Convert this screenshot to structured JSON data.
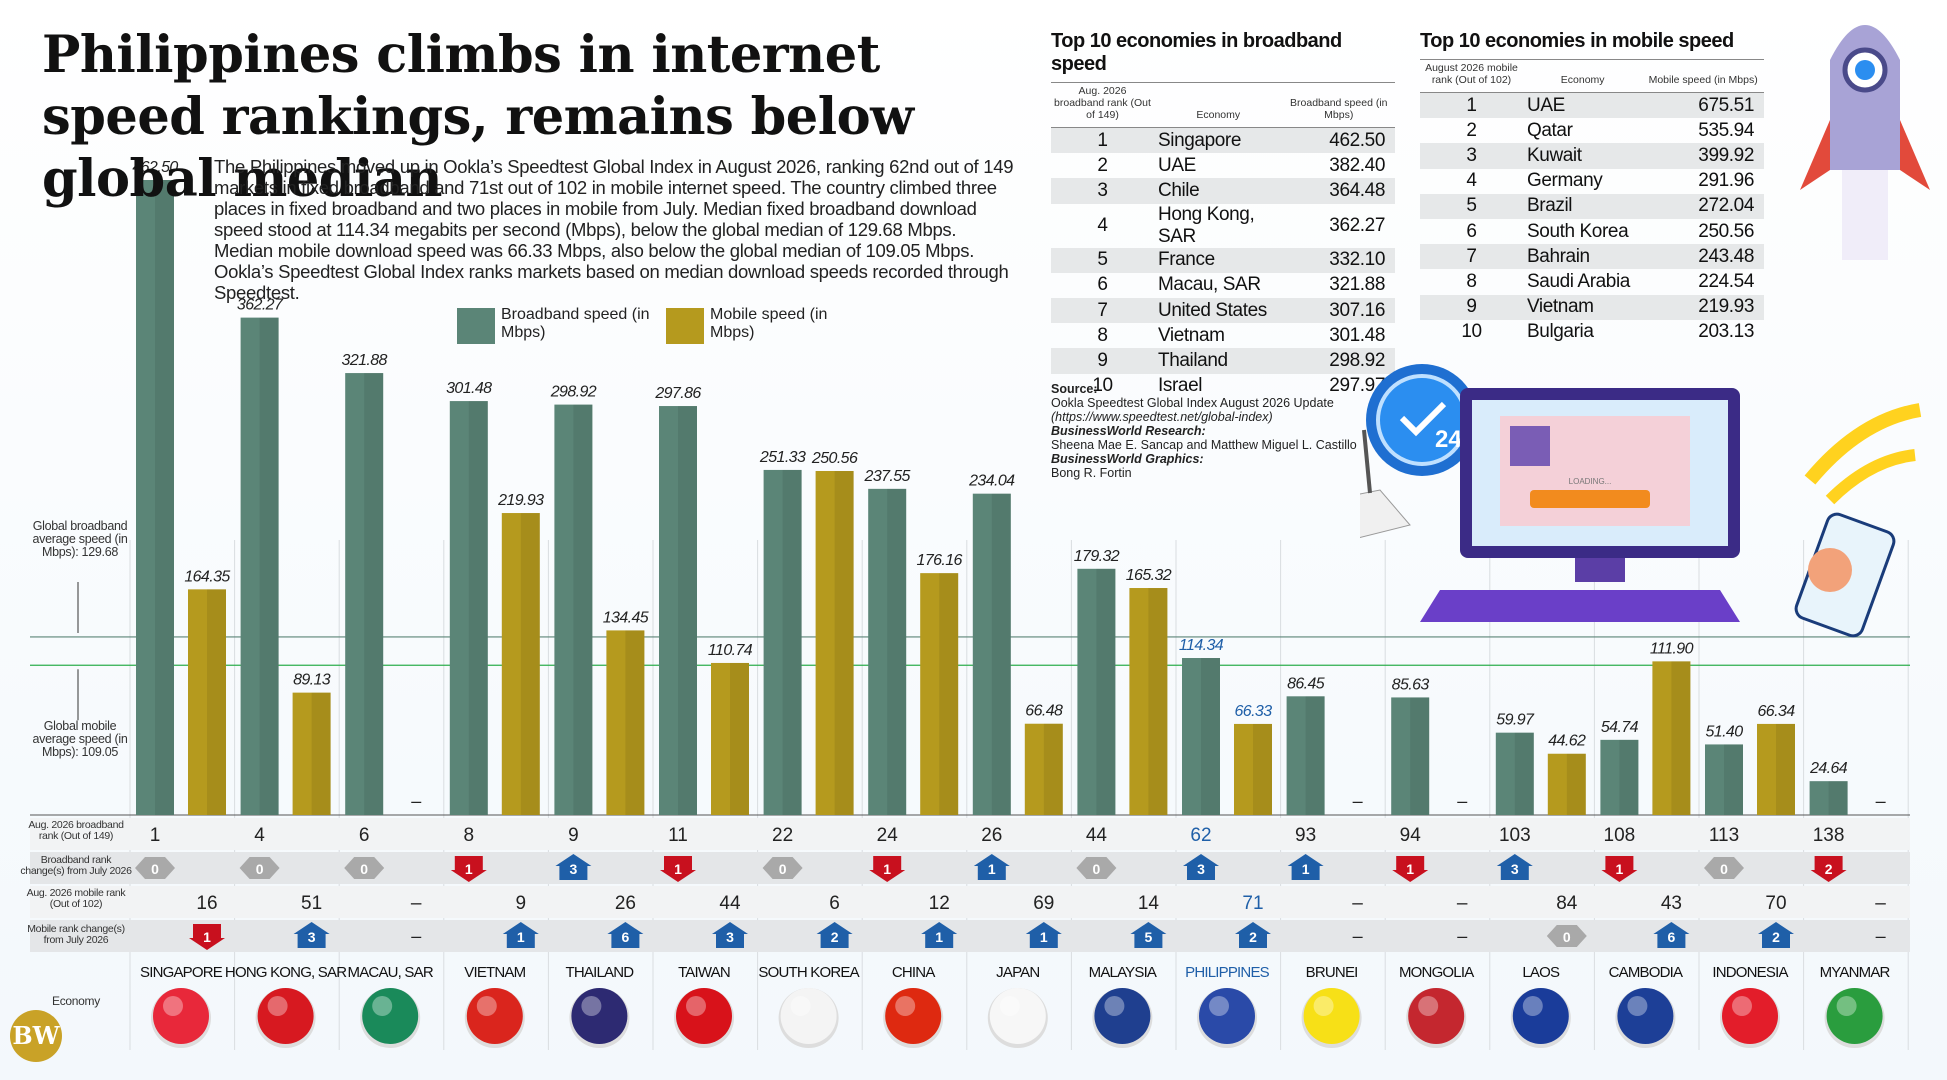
{
  "title": "Philippines climbs in internet speed rankings, remains below global median",
  "intro": "The Philippines moved up in Ookla’s Speedtest Global Index in August 2026, ranking 62nd out of 149 markets in fixed broadband and 71st out of 102 in mobile internet speed. The country climbed three places in fixed broadband and two places in mobile from July. Median fixed broadband download speed stood at 114.34 megabits per second (Mbps), below the global median of 129.68 Mbps. Median mobile download speed was 66.33 Mbps, also below the global median of 109.05 Mbps. Ookla’s Speedtest Global Index ranks markets based on median download speeds recorded through Speedtest.",
  "legend": {
    "broadband": "Broadband speed (in Mbps)",
    "mobile": "Mobile speed (in Mbps)"
  },
  "colors": {
    "broadband": "#5b8577",
    "mobile": "#b59a1e",
    "philippines": "#1f5fa8",
    "up": "#1f5fa8",
    "down": "#c8101e",
    "same": "#a9a9a9"
  },
  "side_labels": {
    "global_broadband": "Global broadband average speed (in Mbps): 129.68",
    "global_mobile": "Global mobile average speed (in Mbps): 109.05"
  },
  "row_labels": {
    "bb_rank": "Aug. 2026 broadband rank (Out of 149)",
    "bb_change": "Broadband rank change(s) from July 2026",
    "mob_rank": "Aug. 2026 mobile rank (Out of 102)",
    "mob_change": "Mobile rank change(s) from July 2026",
    "economy": "Economy"
  },
  "chart_data": {
    "type": "bar",
    "categories": [
      "SINGAPORE",
      "HONG KONG, SAR",
      "MACAU, SAR",
      "VIETNAM",
      "THAILAND",
      "TAIWAN",
      "SOUTH KOREA",
      "CHINA",
      "JAPAN",
      "MALAYSIA",
      "PHILIPPINES",
      "BRUNEI",
      "MONGOLIA",
      "LAOS",
      "CAMBODIA",
      "INDONESIA",
      "MYANMAR"
    ],
    "series": [
      {
        "name": "Broadband speed (in Mbps)",
        "values": [
          462.5,
          362.27,
          321.88,
          301.48,
          298.92,
          297.86,
          251.33,
          237.55,
          234.04,
          179.32,
          114.34,
          86.45,
          85.63,
          59.97,
          54.74,
          51.4,
          24.64
        ]
      },
      {
        "name": "Mobile speed (in Mbps)",
        "values": [
          164.35,
          89.13,
          null,
          219.93,
          134.45,
          110.74,
          250.56,
          176.16,
          66.48,
          165.32,
          66.33,
          null,
          null,
          44.62,
          111.9,
          66.34,
          null
        ]
      }
    ],
    "global_broadband_average": 129.68,
    "global_mobile_average": 109.05,
    "ylim": [
      0,
      470
    ],
    "broadband_rank": [
      "1",
      "4",
      "6",
      "8",
      "9",
      "11",
      "22",
      "24",
      "26",
      "44",
      "62",
      "93",
      "94",
      "103",
      "108",
      "113",
      "138"
    ],
    "broadband_rank_change": [
      {
        "dir": "same",
        "value": "0"
      },
      {
        "dir": "same",
        "value": "0"
      },
      {
        "dir": "same",
        "value": "0"
      },
      {
        "dir": "down",
        "value": "1"
      },
      {
        "dir": "up",
        "value": "3"
      },
      {
        "dir": "down",
        "value": "1"
      },
      {
        "dir": "same",
        "value": "0"
      },
      {
        "dir": "down",
        "value": "1"
      },
      {
        "dir": "up",
        "value": "1"
      },
      {
        "dir": "same",
        "value": "0"
      },
      {
        "dir": "up",
        "value": "3"
      },
      {
        "dir": "up",
        "value": "1"
      },
      {
        "dir": "down",
        "value": "1"
      },
      {
        "dir": "up",
        "value": "3"
      },
      {
        "dir": "down",
        "value": "1"
      },
      {
        "dir": "same",
        "value": "0"
      },
      {
        "dir": "down",
        "value": "2"
      }
    ],
    "mobile_rank": [
      "16",
      "51",
      "–",
      "9",
      "26",
      "44",
      "6",
      "12",
      "69",
      "14",
      "71",
      "–",
      "–",
      "84",
      "43",
      "70",
      "–"
    ],
    "mobile_rank_change": [
      {
        "dir": "down",
        "value": "1"
      },
      {
        "dir": "up",
        "value": "3"
      },
      {
        "dir": "none",
        "value": "–"
      },
      {
        "dir": "up",
        "value": "1"
      },
      {
        "dir": "up",
        "value": "6"
      },
      {
        "dir": "up",
        "value": "3"
      },
      {
        "dir": "up",
        "value": "2"
      },
      {
        "dir": "up",
        "value": "1"
      },
      {
        "dir": "up",
        "value": "1"
      },
      {
        "dir": "up",
        "value": "5"
      },
      {
        "dir": "up",
        "value": "2"
      },
      {
        "dir": "none",
        "value": "–"
      },
      {
        "dir": "none",
        "value": "–"
      },
      {
        "dir": "same",
        "value": "0"
      },
      {
        "dir": "up",
        "value": "6"
      },
      {
        "dir": "up",
        "value": "2"
      },
      {
        "dir": "none",
        "value": "–"
      }
    ]
  },
  "tables": {
    "broadband": {
      "title": "Top 10 economies in broadband speed",
      "headers": [
        "Aug. 2026 broadband rank (Out of 149)",
        "Economy",
        "Broadband speed (in Mbps)"
      ],
      "rows": [
        [
          "1",
          "Singapore",
          "462.50"
        ],
        [
          "2",
          "UAE",
          "382.40"
        ],
        [
          "3",
          "Chile",
          "364.48"
        ],
        [
          "4",
          "Hong Kong, SAR",
          "362.27"
        ],
        [
          "5",
          "France",
          "332.10"
        ],
        [
          "6",
          "Macau, SAR",
          "321.88"
        ],
        [
          "7",
          "United States",
          "307.16"
        ],
        [
          "8",
          "Vietnam",
          "301.48"
        ],
        [
          "9",
          "Thailand",
          "298.92"
        ],
        [
          "10",
          "Israel",
          "297.97"
        ]
      ]
    },
    "mobile": {
      "title": "Top 10 economies in mobile speed",
      "headers": [
        "August 2026 mobile rank (Out of 102)",
        "Economy",
        "Mobile speed (in Mbps)"
      ],
      "rows": [
        [
          "1",
          "UAE",
          "675.51"
        ],
        [
          "2",
          "Qatar",
          "535.94"
        ],
        [
          "3",
          "Kuwait",
          "399.92"
        ],
        [
          "4",
          "Germany",
          "291.96"
        ],
        [
          "5",
          "Brazil",
          "272.04"
        ],
        [
          "6",
          "South Korea",
          "250.56"
        ],
        [
          "7",
          "Bahrain",
          "243.48"
        ],
        [
          "8",
          "Saudi Arabia",
          "224.54"
        ],
        [
          "9",
          "Vietnam",
          "219.93"
        ],
        [
          "10",
          "Bulgaria",
          "203.13"
        ]
      ]
    }
  },
  "source": {
    "label": "Source:",
    "text": "Ookla Speedtest Global Index August 2026 Update",
    "url": "(https://www.speedtest.net/global-index)",
    "research_label": "BusinessWorld Research:",
    "research": "Sheena Mae E. Sancap and Matthew Miguel L. Castillo",
    "graphics_label": "BusinessWorld Graphics:",
    "graphics": "Bong R. Fortin"
  },
  "illustration": {
    "loading_text": "LOADING...",
    "clock_number": "24"
  },
  "logo": "BW"
}
